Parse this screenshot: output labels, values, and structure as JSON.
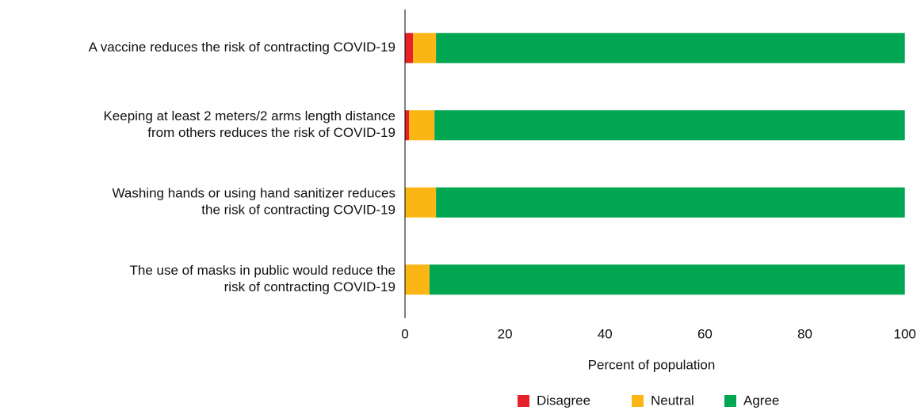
{
  "chart_data": {
    "type": "stacked-barh",
    "categories": [
      [
        "A vaccine reduces the risk of contracting COVID-19"
      ],
      [
        "Keeping at least 2 meters/2 arms length distance",
        "from others reduces the risk of COVID-19"
      ],
      [
        "Washing hands or using hand sanitizer reduces",
        "the risk of contracting COVID-19"
      ],
      [
        "The use of masks in public would reduce the",
        "risk of contracting COVID-19"
      ]
    ],
    "series": [
      {
        "name": "Disagree",
        "color": "#e8202a",
        "values": [
          1.6,
          0.8,
          0,
          0
        ]
      },
      {
        "name": "Neutral",
        "color": "#fbb615",
        "values": [
          4.6,
          5.1,
          6.2,
          4.9
        ]
      },
      {
        "name": "Agree",
        "color": "#00a651",
        "values": [
          93.8,
          94.1,
          93.8,
          95.1
        ]
      }
    ],
    "xlabel": "Percent of population",
    "xlim": [
      0,
      101
    ],
    "xticks": [
      0,
      20,
      40,
      60,
      80,
      100
    ]
  }
}
